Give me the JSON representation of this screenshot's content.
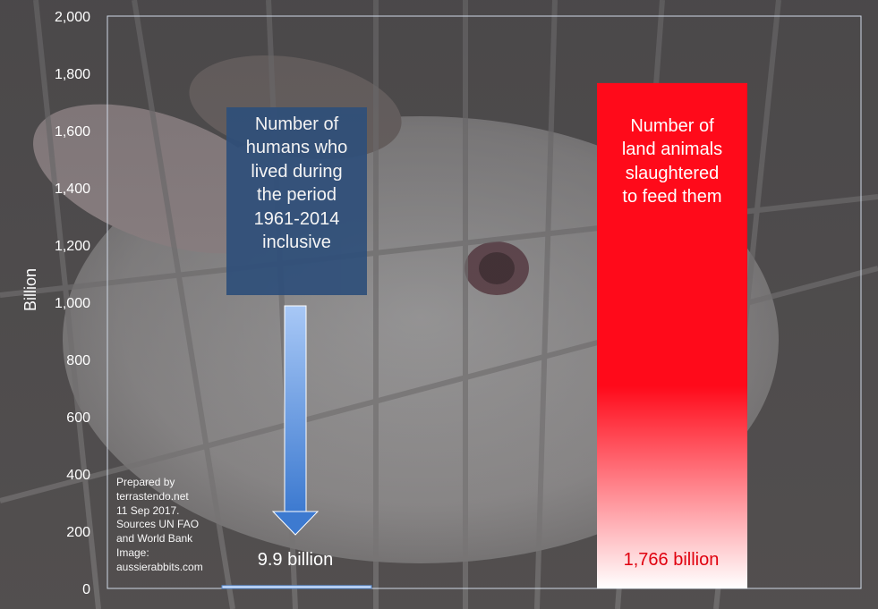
{
  "chart_data": {
    "type": "bar",
    "ylabel": "Billion",
    "ylim": [
      0,
      2000
    ],
    "yticks": [
      "0",
      "200",
      "400",
      "600",
      "800",
      "1,000",
      "1,200",
      "1,400",
      "1,600",
      "1,800",
      "2,000"
    ],
    "bars": [
      {
        "key": "humans",
        "value": 9.9,
        "data_label": "9.9 billion",
        "color": "#5b8fd6",
        "annotation": [
          "Number of",
          "humans who",
          "lived during",
          "the period",
          "1961-2014",
          "inclusive"
        ]
      },
      {
        "key": "animals",
        "value": 1766,
        "data_label": "1,766 billion",
        "color": "#ff0a1a",
        "annotation": [
          "Number of",
          "land animals",
          "slaughtered",
          "to feed them"
        ]
      }
    ]
  },
  "credits": [
    "Prepared by",
    "terrastendo.net",
    "11 Sep 2017.",
    "Sources UN FAO",
    "and World Bank",
    "Image:",
    "aussierabbits.com"
  ],
  "colors": {
    "human_box": "#2f4f7a",
    "arrow": "#5b8fd6",
    "animal_bar": "#ff0a1a",
    "animal_label": "#e0000e"
  }
}
